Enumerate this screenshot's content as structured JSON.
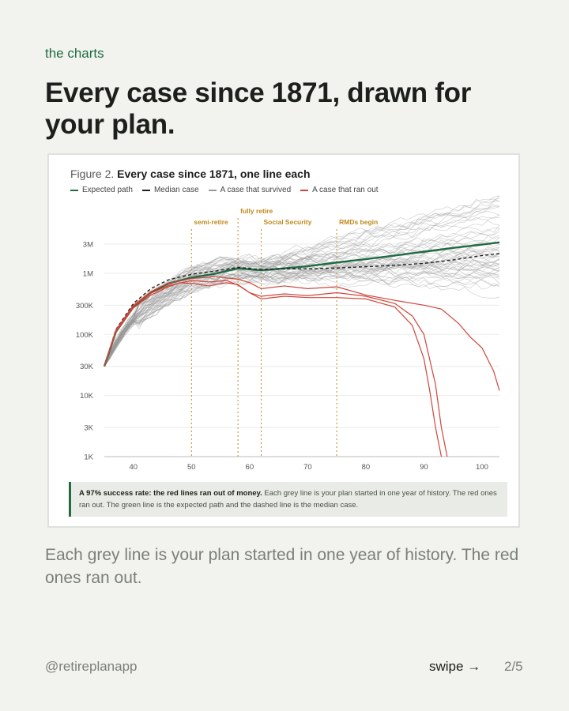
{
  "page": {
    "kicker": "the charts",
    "headline": "Every case since 1871, drawn for your plan.",
    "caption": "Each grey line is your plan started in one year of history. The red ones ran out.",
    "handle": "@retireplanapp",
    "swipe_label": "swipe →",
    "pager": "2/5"
  },
  "figure": {
    "label": "Figure 2.",
    "title": "Every case since 1871, one line each",
    "note_bold": "A 97% success rate: the red lines ran out of money.",
    "note_text": " Each grey line is your plan started in one year of history. The red ones ran out. The green line is the expected path and the dashed line is the median case."
  },
  "colors": {
    "expected": "#1f6b43",
    "median": "#222222",
    "survived": "#9a9a9a",
    "ranout": "#d0463b",
    "milestone": "#c08a1e"
  },
  "chart_data": {
    "type": "line",
    "y_scale": "log",
    "xlim": [
      35,
      103
    ],
    "ylim": [
      1000,
      8000000
    ],
    "x_ticks": [
      40,
      50,
      60,
      70,
      80,
      90,
      100
    ],
    "y_ticks": [
      {
        "value": 1000,
        "label": "1K"
      },
      {
        "value": 3000,
        "label": "3K"
      },
      {
        "value": 10000,
        "label": "10K"
      },
      {
        "value": 30000,
        "label": "30K"
      },
      {
        "value": 100000,
        "label": "100K"
      },
      {
        "value": 300000,
        "label": "300K"
      },
      {
        "value": 1000000,
        "label": "1M"
      },
      {
        "value": 3000000,
        "label": "3M"
      }
    ],
    "grid": true,
    "legend": [
      "Expected path",
      "Median case",
      "A case that survived",
      "A case that ran out"
    ],
    "milestones": [
      {
        "x": 50,
        "label": "semi-retire"
      },
      {
        "x": 58,
        "label": "fully retire"
      },
      {
        "x": 62,
        "label": "Social Security"
      },
      {
        "x": 75,
        "label": "RMDs begin"
      }
    ],
    "series": [
      {
        "name": "Expected path",
        "style": "expected",
        "x": [
          35,
          37,
          40,
          43,
          46,
          50,
          54,
          58,
          62,
          66,
          70,
          75,
          80,
          85,
          90,
          95,
          100,
          103
        ],
        "y": [
          30000,
          110000,
          280000,
          480000,
          680000,
          850000,
          980000,
          1200000,
          1120000,
          1200000,
          1300000,
          1500000,
          1700000,
          1950000,
          2250000,
          2600000,
          2950000,
          3200000
        ]
      },
      {
        "name": "Median case",
        "style": "median",
        "x": [
          35,
          37,
          40,
          43,
          46,
          50,
          54,
          58,
          62,
          66,
          70,
          75,
          80,
          85,
          90,
          95,
          100,
          103
        ],
        "y": [
          30000,
          120000,
          320000,
          560000,
          780000,
          960000,
          1080000,
          1250000,
          1150000,
          1180000,
          1180000,
          1220000,
          1280000,
          1350000,
          1450000,
          1650000,
          1950000,
          2100000
        ]
      },
      {
        "name": "A case that ran out",
        "style": "ranout",
        "x": [
          35,
          37,
          40,
          43,
          46,
          48,
          50,
          53,
          56,
          58,
          60,
          62,
          66,
          70,
          75,
          80,
          85,
          88,
          90,
          91,
          92,
          93
        ],
        "y": [
          30000,
          110000,
          270000,
          440000,
          600000,
          700000,
          680000,
          620000,
          700000,
          650000,
          480000,
          380000,
          420000,
          400000,
          400000,
          380000,
          280000,
          140000,
          40000,
          12000,
          3000,
          1000
        ]
      },
      {
        "name": "A case that ran out",
        "style": "ranout",
        "x": [
          35,
          37,
          40,
          43,
          46,
          50,
          53,
          56,
          58,
          60,
          62,
          66,
          70,
          75,
          80,
          85,
          88,
          90,
          92,
          93,
          94
        ],
        "y": [
          30000,
          115000,
          290000,
          470000,
          630000,
          760000,
          720000,
          760000,
          640000,
          480000,
          420000,
          460000,
          430000,
          480000,
          420000,
          320000,
          200000,
          100000,
          15000,
          3000,
          1000
        ]
      },
      {
        "name": "A case that ran out",
        "style": "ranout",
        "x": [
          35,
          37,
          40,
          43,
          46,
          50,
          54,
          58,
          60,
          62,
          66,
          70,
          75,
          80,
          85,
          90,
          93,
          96,
          98,
          100,
          102,
          103
        ],
        "y": [
          30000,
          118000,
          300000,
          500000,
          690000,
          820000,
          880000,
          800000,
          700000,
          560000,
          620000,
          560000,
          600000,
          440000,
          360000,
          300000,
          260000,
          150000,
          90000,
          60000,
          25000,
          12000
        ]
      }
    ]
  }
}
